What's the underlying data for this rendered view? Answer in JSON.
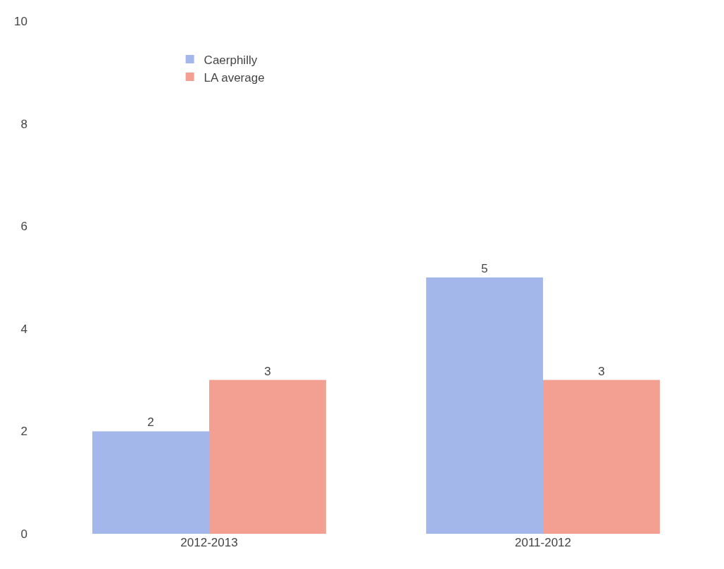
{
  "chart_data": {
    "type": "bar",
    "categories": [
      "2012-2013",
      "2011-2012"
    ],
    "series": [
      {
        "name": "Caerphilly",
        "color": "#a3b7ea",
        "values": [
          2,
          5
        ]
      },
      {
        "name": "LA average",
        "color": "#f3a092",
        "values": [
          3,
          3
        ]
      }
    ],
    "ylim": [
      0,
      10
    ],
    "yticks": [
      0,
      2,
      4,
      6,
      8,
      10
    ],
    "grid": false,
    "legend": "top left",
    "data_labels": true
  }
}
